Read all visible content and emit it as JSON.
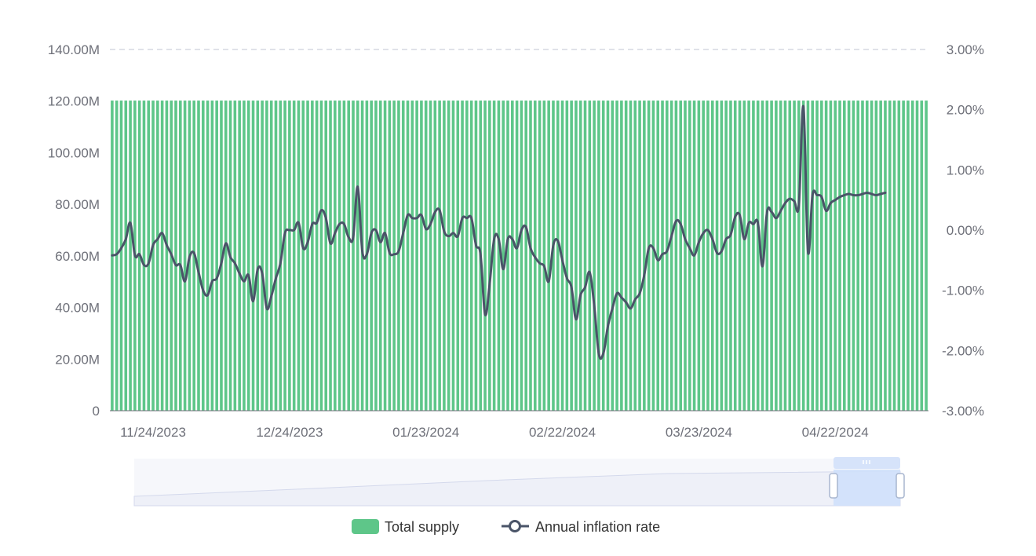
{
  "chart_data": {
    "type": "bar+line",
    "x_range": [
      "2023-11-15",
      "2024-05-13"
    ],
    "x_ticks": [
      "11/24/2023",
      "12/24/2023",
      "01/23/2024",
      "02/22/2024",
      "03/23/2024",
      "04/22/2024"
    ],
    "y_left": {
      "ticks": [
        "0",
        "20.00M",
        "40.00M",
        "60.00M",
        "80.00M",
        "100.00M",
        "120.00M",
        "140.00M"
      ],
      "range": [
        0,
        140000000
      ]
    },
    "y_right": {
      "ticks": [
        "-3.00%",
        "-2.00%",
        "-1.00%",
        "0.00%",
        "1.00%",
        "2.00%",
        "3.00%"
      ],
      "range": [
        -3,
        3
      ]
    },
    "grid": "dashed line at top only",
    "series": [
      {
        "name": "Total supply",
        "type": "bar",
        "color": "#5ec689",
        "note": "One bar per day; all approximately 120.00M",
        "value": 120200000,
        "count": 181
      },
      {
        "name": "Annual inflation rate",
        "type": "line",
        "color": "#4a5468",
        "points": [
          [
            "2023-11-15",
            -0.42
          ],
          [
            "2023-11-16",
            -0.4
          ],
          [
            "2023-11-17",
            -0.3
          ],
          [
            "2023-11-18",
            -0.15
          ],
          [
            "2023-11-19",
            0.12
          ],
          [
            "2023-11-20",
            -0.42
          ],
          [
            "2023-11-21",
            -0.4
          ],
          [
            "2023-11-22",
            -0.58
          ],
          [
            "2023-11-23",
            -0.55
          ],
          [
            "2023-11-24",
            -0.25
          ],
          [
            "2023-11-25",
            -0.15
          ],
          [
            "2023-11-26",
            -0.05
          ],
          [
            "2023-11-27",
            -0.25
          ],
          [
            "2023-11-28",
            -0.4
          ],
          [
            "2023-11-29",
            -0.58
          ],
          [
            "2023-11-30",
            -0.58
          ],
          [
            "2023-12-01",
            -0.85
          ],
          [
            "2023-12-02",
            -0.45
          ],
          [
            "2023-12-03",
            -0.38
          ],
          [
            "2023-12-04",
            -0.7
          ],
          [
            "2023-12-05",
            -1.0
          ],
          [
            "2023-12-06",
            -1.08
          ],
          [
            "2023-12-07",
            -0.85
          ],
          [
            "2023-12-08",
            -0.8
          ],
          [
            "2023-12-09",
            -0.55
          ],
          [
            "2023-12-10",
            -0.22
          ],
          [
            "2023-12-11",
            -0.45
          ],
          [
            "2023-12-12",
            -0.55
          ],
          [
            "2023-12-13",
            -0.72
          ],
          [
            "2023-12-14",
            -0.85
          ],
          [
            "2023-12-15",
            -0.75
          ],
          [
            "2023-12-16",
            -1.18
          ],
          [
            "2023-12-17",
            -0.65
          ],
          [
            "2023-12-18",
            -0.72
          ],
          [
            "2023-12-19",
            -1.3
          ],
          [
            "2023-12-20",
            -1.1
          ],
          [
            "2023-12-21",
            -0.8
          ],
          [
            "2023-12-22",
            -0.55
          ],
          [
            "2023-12-23",
            -0.05
          ],
          [
            "2023-12-24",
            0.0
          ],
          [
            "2023-12-25",
            0.0
          ],
          [
            "2023-12-26",
            0.12
          ],
          [
            "2023-12-27",
            -0.3
          ],
          [
            "2023-12-28",
            -0.2
          ],
          [
            "2023-12-29",
            0.1
          ],
          [
            "2023-12-30",
            0.12
          ],
          [
            "2023-12-31",
            0.33
          ],
          [
            "2024-01-01",
            0.2
          ],
          [
            "2024-01-02",
            -0.22
          ],
          [
            "2024-01-03",
            -0.05
          ],
          [
            "2024-01-04",
            0.1
          ],
          [
            "2024-01-05",
            0.1
          ],
          [
            "2024-01-06",
            -0.12
          ],
          [
            "2024-01-07",
            -0.12
          ],
          [
            "2024-01-08",
            0.72
          ],
          [
            "2024-01-09",
            -0.35
          ],
          [
            "2024-01-10",
            -0.4
          ],
          [
            "2024-01-11",
            -0.05
          ],
          [
            "2024-01-12",
            0.0
          ],
          [
            "2024-01-13",
            -0.2
          ],
          [
            "2024-01-14",
            -0.05
          ],
          [
            "2024-01-15",
            -0.38
          ],
          [
            "2024-01-16",
            -0.4
          ],
          [
            "2024-01-17",
            -0.35
          ],
          [
            "2024-01-18",
            -0.05
          ],
          [
            "2024-01-19",
            0.25
          ],
          [
            "2024-01-20",
            0.2
          ],
          [
            "2024-01-21",
            0.2
          ],
          [
            "2024-01-22",
            0.25
          ],
          [
            "2024-01-23",
            0.02
          ],
          [
            "2024-01-24",
            0.1
          ],
          [
            "2024-01-25",
            0.3
          ],
          [
            "2024-01-26",
            0.33
          ],
          [
            "2024-01-27",
            -0.02
          ],
          [
            "2024-01-28",
            -0.1
          ],
          [
            "2024-01-29",
            -0.05
          ],
          [
            "2024-01-30",
            -0.1
          ],
          [
            "2024-01-31",
            0.2
          ],
          [
            "2024-02-01",
            0.2
          ],
          [
            "2024-02-02",
            0.2
          ],
          [
            "2024-02-03",
            -0.25
          ],
          [
            "2024-02-04",
            -0.4
          ],
          [
            "2024-02-05",
            -1.4
          ],
          [
            "2024-02-06",
            -0.9
          ],
          [
            "2024-02-07",
            -0.15
          ],
          [
            "2024-02-08",
            -0.15
          ],
          [
            "2024-02-09",
            -0.65
          ],
          [
            "2024-02-10",
            -0.15
          ],
          [
            "2024-02-11",
            -0.15
          ],
          [
            "2024-02-12",
            -0.3
          ],
          [
            "2024-02-13",
            0.0
          ],
          [
            "2024-02-14",
            0.05
          ],
          [
            "2024-02-15",
            -0.3
          ],
          [
            "2024-02-16",
            -0.45
          ],
          [
            "2024-02-17",
            -0.55
          ],
          [
            "2024-02-18",
            -0.6
          ],
          [
            "2024-02-19",
            -0.85
          ],
          [
            "2024-02-20",
            -0.25
          ],
          [
            "2024-02-21",
            -0.18
          ],
          [
            "2024-02-22",
            -0.5
          ],
          [
            "2024-02-23",
            -0.8
          ],
          [
            "2024-02-24",
            -0.95
          ],
          [
            "2024-02-25",
            -1.48
          ],
          [
            "2024-02-26",
            -1.08
          ],
          [
            "2024-02-27",
            -0.95
          ],
          [
            "2024-02-28",
            -0.7
          ],
          [
            "2024-02-29",
            -1.25
          ],
          [
            "2024-03-01",
            -2.05
          ],
          [
            "2024-03-02",
            -2.05
          ],
          [
            "2024-03-03",
            -1.6
          ],
          [
            "2024-03-04",
            -1.3
          ],
          [
            "2024-03-05",
            -1.05
          ],
          [
            "2024-03-06",
            -1.12
          ],
          [
            "2024-03-07",
            -1.2
          ],
          [
            "2024-03-08",
            -1.3
          ],
          [
            "2024-03-09",
            -1.15
          ],
          [
            "2024-03-10",
            -1.05
          ],
          [
            "2024-03-11",
            -0.75
          ],
          [
            "2024-03-12",
            -0.3
          ],
          [
            "2024-03-13",
            -0.3
          ],
          [
            "2024-03-14",
            -0.5
          ],
          [
            "2024-03-15",
            -0.4
          ],
          [
            "2024-03-16",
            -0.35
          ],
          [
            "2024-03-17",
            -0.1
          ],
          [
            "2024-03-18",
            0.15
          ],
          [
            "2024-03-19",
            0.1
          ],
          [
            "2024-03-20",
            -0.15
          ],
          [
            "2024-03-21",
            -0.3
          ],
          [
            "2024-03-22",
            -0.42
          ],
          [
            "2024-03-23",
            -0.2
          ],
          [
            "2024-03-24",
            -0.05
          ],
          [
            "2024-03-25",
            0.0
          ],
          [
            "2024-03-26",
            -0.15
          ],
          [
            "2024-03-27",
            -0.38
          ],
          [
            "2024-03-28",
            -0.35
          ],
          [
            "2024-03-29",
            -0.15
          ],
          [
            "2024-03-30",
            -0.08
          ],
          [
            "2024-03-31",
            0.22
          ],
          [
            "2024-04-01",
            0.25
          ],
          [
            "2024-04-02",
            -0.15
          ],
          [
            "2024-04-03",
            0.12
          ],
          [
            "2024-04-04",
            0.1
          ],
          [
            "2024-04-05",
            0.12
          ],
          [
            "2024-04-06",
            -0.6
          ],
          [
            "2024-04-07",
            0.3
          ],
          [
            "2024-04-08",
            0.3
          ],
          [
            "2024-04-09",
            0.2
          ],
          [
            "2024-04-10",
            0.32
          ],
          [
            "2024-04-11",
            0.45
          ],
          [
            "2024-04-12",
            0.52
          ],
          [
            "2024-04-13",
            0.48
          ],
          [
            "2024-04-14",
            0.42
          ],
          [
            "2024-04-15",
            2.05
          ],
          [
            "2024-04-16",
            -0.35
          ],
          [
            "2024-04-17",
            0.58
          ],
          [
            "2024-04-18",
            0.58
          ],
          [
            "2024-04-19",
            0.55
          ],
          [
            "2024-04-20",
            0.32
          ],
          [
            "2024-04-21",
            0.45
          ],
          [
            "2024-04-22",
            0.5
          ],
          [
            "2024-04-23",
            0.55
          ],
          [
            "2024-04-24",
            0.58
          ],
          [
            "2024-04-25",
            0.6
          ],
          [
            "2024-04-26",
            0.58
          ],
          [
            "2024-04-27",
            0.58
          ],
          [
            "2024-04-28",
            0.6
          ],
          [
            "2024-04-29",
            0.62
          ],
          [
            "2024-04-30",
            0.6
          ],
          [
            "2024-05-01",
            0.58
          ],
          [
            "2024-05-02",
            0.6
          ],
          [
            "2024-05-03",
            0.62
          ]
        ]
      }
    ],
    "legend": {
      "position": "bottom-center",
      "items": [
        "Total supply",
        "Annual inflation rate"
      ]
    },
    "data_zoom": {
      "selected_range": [
        "2023-11-15",
        "2024-05-03"
      ]
    }
  }
}
